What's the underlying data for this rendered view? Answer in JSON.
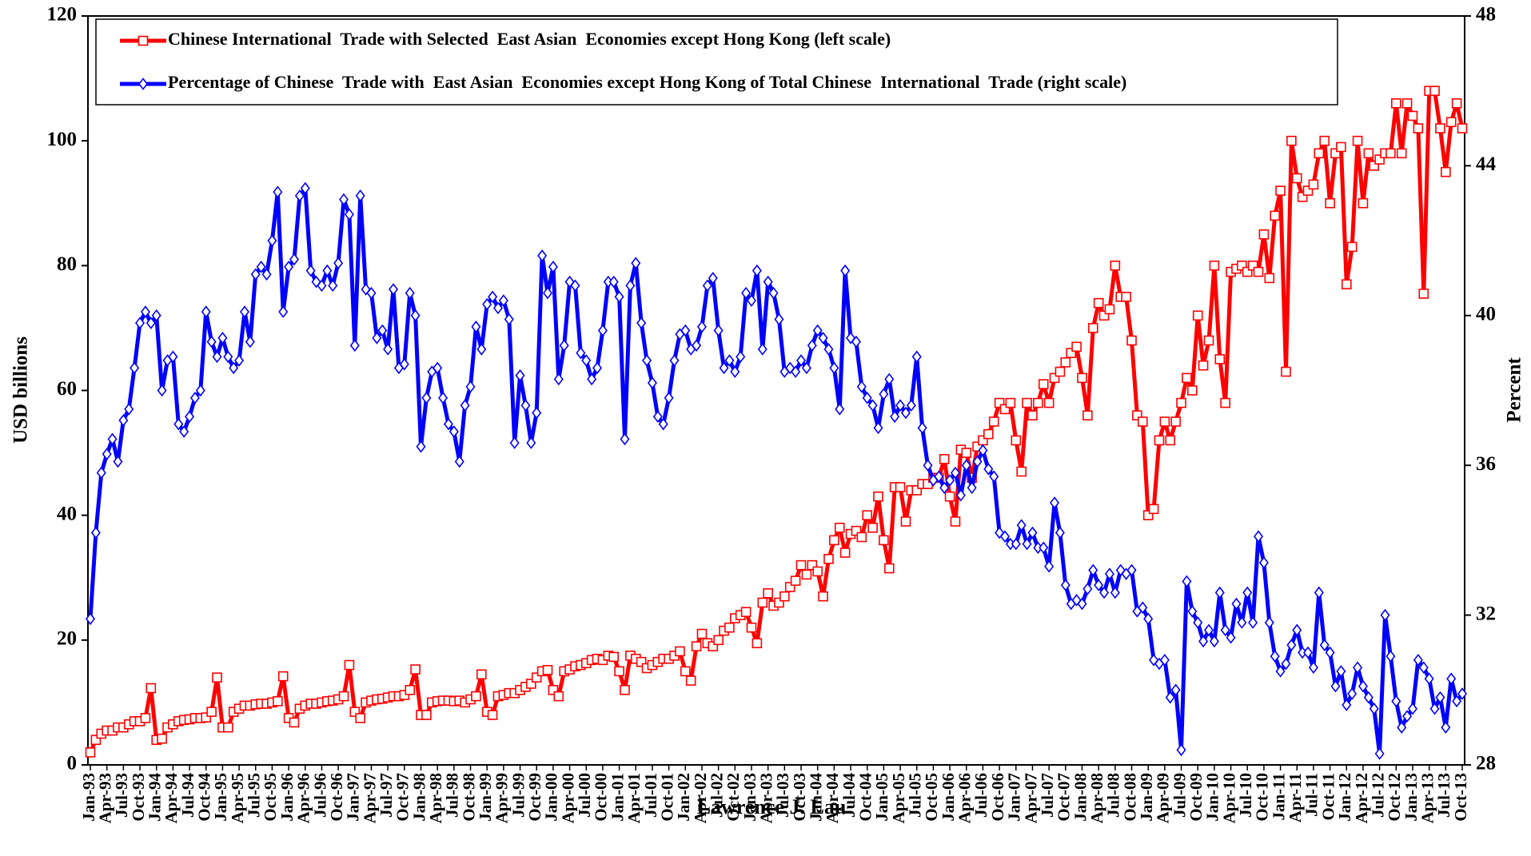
{
  "chart_data": {
    "type": "line",
    "annotation": "Lawrence J. Lau",
    "y_label": "USD billions",
    "y2_label": "Percent",
    "ylim": [
      0,
      120
    ],
    "yticks": [
      0,
      20,
      40,
      60,
      80,
      100,
      120
    ],
    "y2lim": [
      28,
      48
    ],
    "y2ticks": [
      28,
      32,
      36,
      40,
      44,
      48
    ],
    "legend": "top",
    "categories": [
      "Jan-93",
      null,
      null,
      "Apr-93",
      null,
      null,
      "Jul-93",
      null,
      null,
      "Oct-93",
      null,
      null,
      "Jan-94",
      null,
      null,
      "Apr-94",
      null,
      null,
      "Jul-94",
      null,
      null,
      "Oct-94",
      null,
      null,
      "Jan-95",
      null,
      null,
      "Apr-95",
      null,
      null,
      "Jul-95",
      null,
      null,
      "Oct-95",
      null,
      null,
      "Jan-96",
      null,
      null,
      "Apr-96",
      null,
      null,
      "Jul-96",
      null,
      null,
      "Oct-96",
      null,
      null,
      "Jan-97",
      null,
      null,
      "Apr-97",
      null,
      null,
      "Jul-97",
      null,
      null,
      "Oct-97",
      null,
      null,
      "Jan-98",
      null,
      null,
      "Apr-98",
      null,
      null,
      "Jul-98",
      null,
      null,
      "Oct-98",
      null,
      null,
      "Jan-99",
      null,
      null,
      "Apr-99",
      null,
      null,
      "Jul-99",
      null,
      null,
      "Oct-99",
      null,
      null,
      "Jan-00",
      null,
      null,
      "Apr-00",
      null,
      null,
      "Jul-00",
      null,
      null,
      "Oct-00",
      null,
      null,
      "Jan-01",
      null,
      null,
      "Apr-01",
      null,
      null,
      "Jul-01",
      null,
      null,
      "Oct-01",
      null,
      null,
      "Jan-02",
      null,
      null,
      "Apr-02",
      null,
      null,
      "Jul-02",
      null,
      null,
      "Oct-02",
      null,
      null,
      "Jan-03",
      null,
      null,
      "Apr-03",
      null,
      null,
      "Jul-03",
      null,
      null,
      "Oct-03",
      null,
      null,
      "Jan-04",
      null,
      null,
      "Apr-04",
      null,
      null,
      "Jul-04",
      null,
      null,
      "Oct-04",
      null,
      null,
      "Jan-05",
      null,
      null,
      "Apr-05",
      null,
      null,
      "Jul-05",
      null,
      null,
      "Oct-05",
      null,
      null,
      "Jan-06",
      null,
      null,
      "Apr-06",
      null,
      null,
      "Jul-06",
      null,
      null,
      "Oct-06",
      null,
      null,
      "Jan-07",
      null,
      null,
      "Apr-07",
      null,
      null,
      "Jul-07",
      null,
      null,
      "Oct-07",
      null,
      null,
      "Jan-08",
      null,
      null,
      "Apr-08",
      null,
      null,
      "Jul-08",
      null,
      null,
      "Oct-08",
      null,
      null,
      "Jan-09",
      null,
      null,
      "Apr-09",
      null,
      null,
      "Jul-09",
      null,
      null,
      "Oct-09",
      null,
      null,
      "Jan-10",
      null,
      null,
      "Apr-10",
      null,
      null,
      "Jul-10",
      null,
      null,
      "Oct-10",
      null,
      null,
      "Jan-11",
      null,
      null,
      "Apr-11",
      null,
      null,
      "Jul-11",
      null,
      null,
      "Oct-11",
      null,
      null,
      "Jan-12",
      null,
      null,
      "Apr-12",
      null,
      null,
      "Jul-12",
      null,
      null,
      "Oct-12",
      null,
      null,
      "Jan-13",
      null,
      null,
      "Apr-13",
      null,
      null,
      "Jul-13",
      null,
      null,
      "Oct-13"
    ],
    "series": [
      {
        "name": "Chinese International  Trade with Selected  East Asian  Economies except Hong Kong (left scale)",
        "color": "#ff0000",
        "marker": "square",
        "values": [
          2,
          4,
          5,
          5.5,
          5.5,
          6,
          6,
          6.5,
          7,
          7,
          7.5,
          12.3,
          4,
          4.2,
          6,
          6.5,
          7,
          7.2,
          7.3,
          7.5,
          7.5,
          7.6,
          8.5,
          14,
          6,
          6,
          8.5,
          9,
          9.5,
          9.5,
          9.7,
          9.8,
          9.8,
          10,
          10.2,
          14.2,
          7.5,
          6.8,
          9,
          9.5,
          9.8,
          9.8,
          10,
          10.2,
          10.3,
          10.5,
          11,
          16,
          8.5,
          7.5,
          10,
          10.3,
          10.5,
          10.6,
          10.8,
          11,
          11,
          11.2,
          12,
          15.3,
          8,
          8,
          10,
          10.2,
          10.3,
          10.3,
          10.2,
          10.3,
          10,
          10.5,
          11,
          14.5,
          8.5,
          8,
          11,
          11.2,
          11.5,
          11.5,
          12,
          12.5,
          13,
          14,
          15,
          15.2,
          12,
          11,
          15,
          15.3,
          15.8,
          16,
          16.3,
          16.8,
          17,
          16.8,
          17.5,
          17.3,
          15,
          12,
          17.5,
          17,
          16.5,
          15.5,
          16,
          16.5,
          17,
          17,
          17.5,
          18.2,
          15,
          13.5,
          19,
          21,
          19.5,
          19,
          20,
          21.5,
          22,
          23.5,
          24,
          24.5,
          22,
          19.5,
          26,
          27.5,
          25.5,
          26,
          27,
          28.5,
          29.5,
          32,
          30.5,
          32,
          31,
          27,
          33,
          36,
          38,
          34,
          37,
          37.5,
          36.5,
          40,
          38,
          43,
          36,
          31.5,
          44.5,
          44.5,
          39,
          44,
          44,
          45,
          45,
          46,
          46,
          49,
          43,
          39,
          50.5,
          50,
          46,
          51,
          52,
          53,
          55,
          58,
          57,
          58,
          52,
          47,
          58,
          56,
          58,
          61,
          58,
          62,
          63,
          64.5,
          66,
          67,
          62,
          56,
          70,
          74,
          72,
          73,
          80,
          75,
          75,
          68,
          56,
          55,
          40,
          41,
          52,
          55,
          52,
          55,
          58,
          62,
          60,
          72,
          64,
          68,
          80,
          65,
          58,
          79,
          79.5,
          80,
          79,
          80,
          79,
          85,
          78,
          88,
          92,
          63,
          100,
          94,
          91,
          92,
          93,
          98,
          100,
          90,
          98,
          99,
          77,
          83,
          100,
          90,
          98,
          96,
          97,
          98,
          98,
          106,
          98,
          106,
          104,
          102,
          75.5,
          108,
          108,
          102,
          95,
          103,
          106,
          102
        ]
      },
      {
        "name": "Percentage of Chinese  Trade with  East Asian  Economies except Hong Kong of Total Chinese  International  Trade (right scale)",
        "color": "#0000ff",
        "marker": "diamond",
        "axis": "y2",
        "values": [
          31.9,
          34.2,
          35.8,
          36.3,
          36.7,
          36.1,
          37.2,
          37.5,
          38.6,
          39.8,
          40.1,
          39.8,
          40,
          38,
          38.8,
          38.9,
          37.1,
          36.9,
          37.3,
          37.8,
          38,
          40.1,
          39.3,
          38.9,
          39.4,
          38.9,
          38.6,
          38.8,
          40.1,
          39.3,
          41.1,
          41.3,
          41.1,
          42,
          43.3,
          40.1,
          41.3,
          41.5,
          43.2,
          43.4,
          41.2,
          40.9,
          40.8,
          41.2,
          40.8,
          41.4,
          43.1,
          42.7,
          39.2,
          43.2,
          40.7,
          40.6,
          39.4,
          39.6,
          39.1,
          40.7,
          38.6,
          38.7,
          40.6,
          40,
          36.5,
          37.8,
          38.5,
          38.6,
          37.8,
          37.1,
          36.9,
          36.1,
          37.6,
          38.1,
          39.7,
          39.1,
          40.3,
          40.5,
          40.2,
          40.4,
          39.9,
          36.6,
          38.4,
          37.6,
          36.6,
          37.4,
          41.6,
          40.6,
          41.3,
          38.3,
          39.2,
          40.9,
          40.8,
          39,
          38.8,
          38.3,
          38.6,
          39.6,
          40.9,
          40.9,
          40.5,
          36.7,
          40.8,
          41.4,
          39.8,
          38.8,
          38.2,
          37.3,
          37.1,
          37.8,
          38.8,
          39.5,
          39.6,
          39.1,
          39.2,
          39.7,
          40.8,
          41,
          39.6,
          38.6,
          38.8,
          38.5,
          38.9,
          40.6,
          40.4,
          41.2,
          39.1,
          40.9,
          40.6,
          39.9,
          38.5,
          38.6,
          38.5,
          38.8,
          38.6,
          39.2,
          39.6,
          39.4,
          39.1,
          38.6,
          37.5,
          41.2,
          39.4,
          39.3,
          38.1,
          37.8,
          37.6,
          37,
          37.9,
          38.3,
          37.3,
          37.6,
          37.4,
          37.6,
          38.9,
          37,
          36,
          35.6,
          35.7,
          35.4,
          35.6,
          35.8,
          35.2,
          36,
          35.4,
          36.1,
          36.4,
          35.9,
          35.7,
          34.2,
          34.1,
          33.9,
          33.9,
          34.4,
          33.9,
          34.2,
          33.8,
          33.8,
          33.3,
          35,
          34.2,
          32.8,
          32.3,
          32.4,
          32.3,
          32.7,
          33.2,
          32.8,
          32.6,
          33.1,
          32.6,
          33.2,
          33.1,
          33.2,
          32.1,
          32.2,
          31.9,
          30.8,
          30.7,
          30.8,
          29.8,
          30,
          28.4,
          32.9,
          32.1,
          31.8,
          31.3,
          31.6,
          31.3,
          32.6,
          31.6,
          31.4,
          32.3,
          31.8,
          32.6,
          31.8,
          34.1,
          33.4,
          31.8,
          30.9,
          30.5,
          30.7,
          31.2,
          31.6,
          31,
          31,
          30.6,
          32.6,
          31.2,
          31,
          30.1,
          30.5,
          29.6,
          29.9,
          30.6,
          30.1,
          29.8,
          29.5,
          28.3,
          32,
          30.9,
          29.7,
          29,
          29.3,
          29.5,
          30.8,
          30.6,
          30.3,
          29.5,
          29.8,
          29,
          30.3,
          29.7,
          29.9
        ]
      }
    ]
  }
}
